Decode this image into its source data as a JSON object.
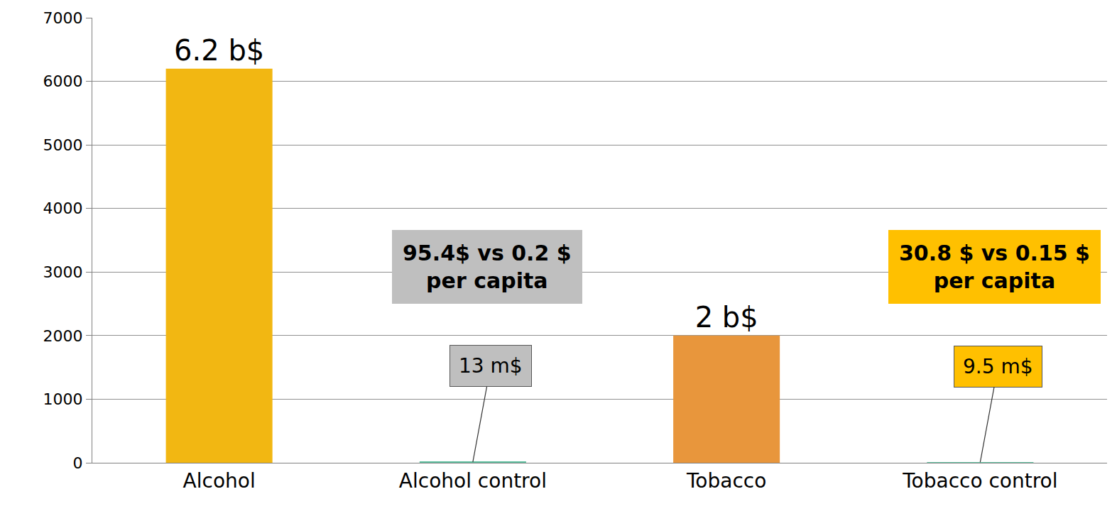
{
  "chart_data": {
    "type": "bar",
    "categories": [
      "Alcohol",
      "Alcohol control",
      "Tobacco",
      "Tobacco control"
    ],
    "values": [
      6200,
      13,
      2000,
      9.5
    ],
    "value_labels": [
      "6.2 b$",
      "13 m$",
      "2 b$",
      "9.5 m$"
    ],
    "data_labels": true,
    "colors": [
      "#f2b712",
      "#5fbf9f",
      "#e8963c",
      "#5fbf9f"
    ],
    "ylim": [
      0,
      7000
    ],
    "yticks": [
      0,
      1000,
      2000,
      3000,
      4000,
      5000,
      6000,
      7000
    ],
    "grid": true,
    "annotations": [
      {
        "text": "95.4$ vs 0.2 $ per capita",
        "category": "Alcohol control",
        "color": "#bfbfbf"
      },
      {
        "text": "30.8 $ vs 0.15 $ per capita",
        "category": "Tobacco control",
        "color": "#ffc000"
      }
    ]
  }
}
